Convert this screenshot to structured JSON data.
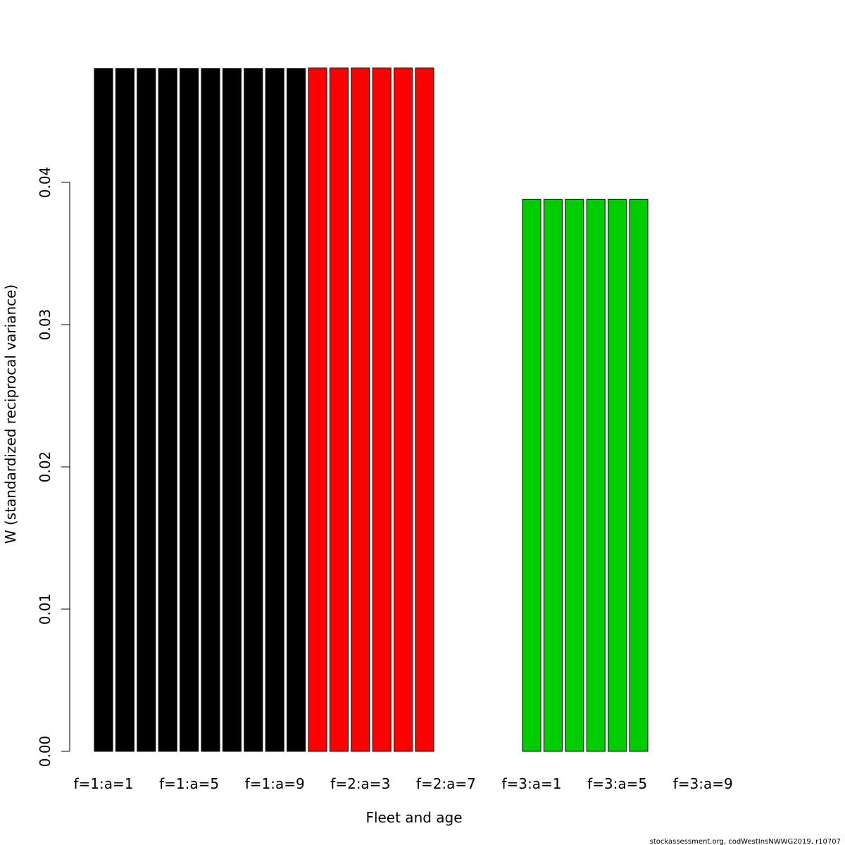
{
  "chart_data": {
    "type": "bar",
    "title": "",
    "xlabel": "Fleet and age",
    "ylabel": "W (standardized reciprocal variance)",
    "ylim": [
      0,
      0.048
    ],
    "yticks": [
      0.0,
      0.01,
      0.02,
      0.03,
      0.04
    ],
    "ytick_labels": [
      "0.00",
      "0.01",
      "0.02",
      "0.03",
      "0.04"
    ],
    "categories": [
      "f=1:a=1",
      "f=1:a=2",
      "f=1:a=3",
      "f=1:a=4",
      "f=1:a=5",
      "f=1:a=6",
      "f=1:a=7",
      "f=1:a=8",
      "f=1:a=9",
      "f=1:a=10",
      "f=2:a=1",
      "f=2:a=2",
      "f=2:a=3",
      "f=2:a=4",
      "f=2:a=5",
      "f=2:a=6",
      "f=2:a=7",
      "f=2:a=8",
      "f=2:a=9",
      "f=2:a=10",
      "f=3:a=1",
      "f=3:a=2",
      "f=3:a=3",
      "f=3:a=4",
      "f=3:a=5",
      "f=3:a=6",
      "f=3:a=7",
      "f=3:a=8",
      "f=3:a=9",
      "f=3:a=10"
    ],
    "values": [
      0.048,
      0.048,
      0.048,
      0.048,
      0.048,
      0.048,
      0.048,
      0.048,
      0.048,
      0.048,
      0.04805,
      0.04805,
      0.04805,
      0.04805,
      0.04805,
      0.04805,
      null,
      null,
      null,
      null,
      0.0388,
      0.0388,
      0.0388,
      0.0388,
      0.0388,
      0.0388,
      null,
      null,
      null,
      null
    ],
    "bar_colors": [
      "#000000",
      "#000000",
      "#000000",
      "#000000",
      "#000000",
      "#000000",
      "#000000",
      "#000000",
      "#000000",
      "#000000",
      "#ff0000",
      "#ff0000",
      "#ff0000",
      "#ff0000",
      "#ff0000",
      "#ff0000",
      "#ff0000",
      "#ff0000",
      "#ff0000",
      "#ff0000",
      "#00cd00",
      "#00cd00",
      "#00cd00",
      "#00cd00",
      "#00cd00",
      "#00cd00",
      "#00cd00",
      "#00cd00",
      "#00cd00",
      "#00cd00"
    ],
    "xtick_labels": [
      {
        "index": 0,
        "label": "f=1:a=1"
      },
      {
        "index": 4,
        "label": "f=1:a=5"
      },
      {
        "index": 8,
        "label": "f=1:a=9"
      },
      {
        "index": 12,
        "label": "f=2:a=3"
      },
      {
        "index": 16,
        "label": "f=2:a=7"
      },
      {
        "index": 20,
        "label": "f=3:a=1"
      },
      {
        "index": 24,
        "label": "f=3:a=5"
      },
      {
        "index": 28,
        "label": "f=3:a=9"
      }
    ],
    "grid": false,
    "legend": "none"
  },
  "footer": {
    "credit": "stockassessment.org, codWestInsNWWG2019, r10707"
  }
}
